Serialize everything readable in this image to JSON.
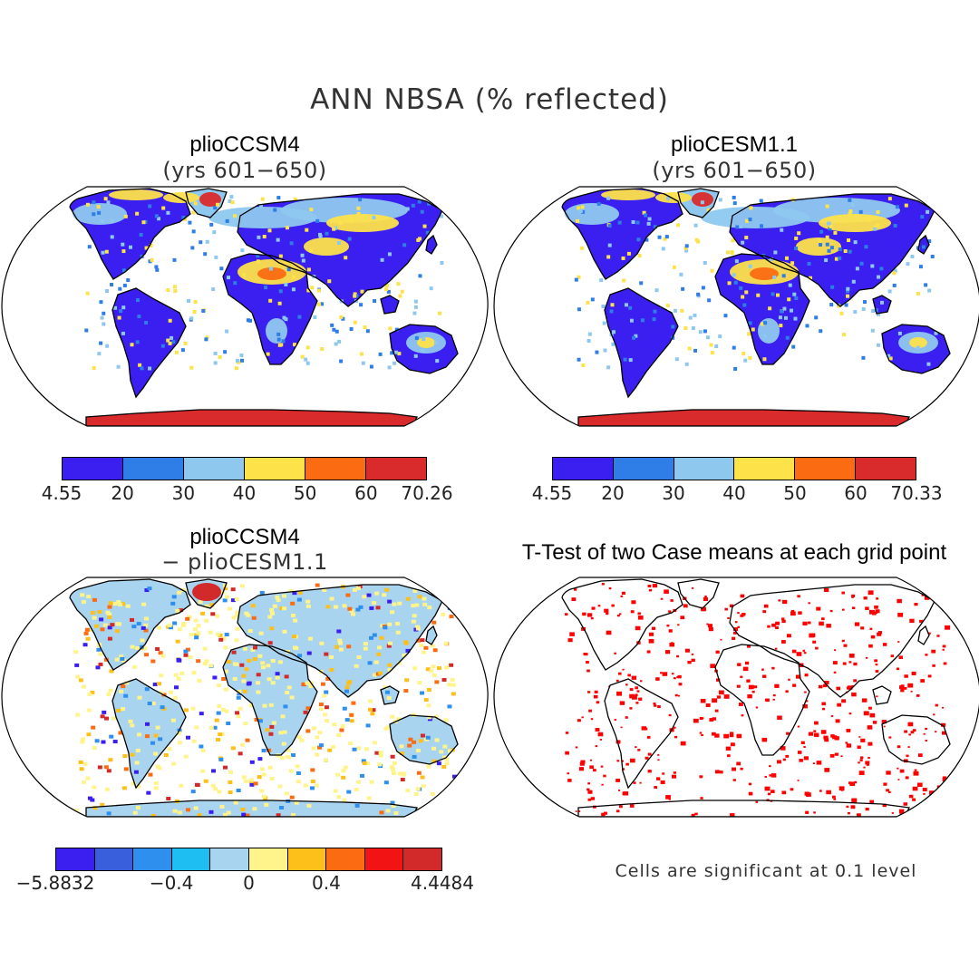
{
  "figure": {
    "title": "ANN NBSA (% reflected)"
  },
  "panels": [
    {
      "id": "a",
      "title": "plioCCSM4",
      "subtitle": "(yrs 601−650)",
      "colorbar": {
        "colors": [
          "#3a1ff0",
          "#2f7de6",
          "#8ec8ef",
          "#fde24a",
          "#fb6b12",
          "#d92b2b"
        ],
        "labels": [
          "4.55",
          "20",
          "30",
          "40",
          "50",
          "60",
          "70.26"
        ]
      }
    },
    {
      "id": "b",
      "title": "plioCESM1.1",
      "subtitle": "(yrs 601−650)",
      "colorbar": {
        "colors": [
          "#3a1ff0",
          "#2f7de6",
          "#8ec8ef",
          "#fde24a",
          "#fb6b12",
          "#d92b2b"
        ],
        "labels": [
          "4.55",
          "20",
          "30",
          "40",
          "50",
          "60",
          "70.33"
        ]
      }
    },
    {
      "id": "c",
      "title": "plioCCSM4",
      "subtitle": "− plioCESM1.1",
      "colorbar": {
        "colors": [
          "#3a1ff0",
          "#3a5fdc",
          "#2f8fee",
          "#1fbef2",
          "#a8d4ef",
          "#fff48c",
          "#fdc01a",
          "#fb6b12",
          "#f21414",
          "#d22a2a"
        ],
        "labels": [
          "−5.8832",
          "−0.4",
          "0",
          "0.4",
          "4.4484"
        ]
      }
    },
    {
      "id": "d",
      "title": "T-Test of two Case means at each grid point",
      "note": "Cells are significant at 0.1 level"
    }
  ],
  "colors": {
    "land_low": "#3a1ff0",
    "land_mid": "#8ec8ef",
    "desert": "#fde24a",
    "hot": "#fb6b12",
    "ice": "#d92b2b",
    "diff_base": "#a8d4ef",
    "diff_pos": "#fff48c",
    "sig": "#ff0000"
  }
}
